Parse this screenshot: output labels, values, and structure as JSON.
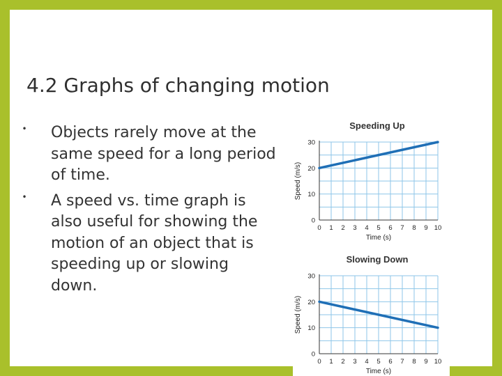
{
  "slide": {
    "title": "4.2 Graphs of changing motion",
    "bullets": [
      "Objects rarely move at the same speed for a long period of time.",
      "A speed vs. time graph is also useful for showing the motion of an object that is speeding up or slowing down."
    ],
    "bullet_glyph": "•"
  },
  "colors": {
    "frame": "#a9c02b",
    "grid": "#8ec6e8",
    "line": "#1f6fb6"
  },
  "chart_data": [
    {
      "type": "line",
      "title": "Speeding Up",
      "xlabel": "Time (s)",
      "ylabel": "Speed (m/s)",
      "xlim": [
        0,
        10
      ],
      "ylim": [
        0,
        30
      ],
      "x_ticks": [
        0,
        1,
        2,
        3,
        4,
        5,
        6,
        7,
        8,
        9,
        10
      ],
      "y_ticks": [
        0,
        10,
        20,
        30
      ],
      "grid": true,
      "series": [
        {
          "x": [
            0,
            10
          ],
          "y": [
            20,
            30
          ]
        }
      ]
    },
    {
      "type": "line",
      "title": "Slowing Down",
      "xlabel": "Time (s)",
      "ylabel": "Speed (m/s)",
      "xlim": [
        0,
        10
      ],
      "ylim": [
        0,
        30
      ],
      "x_ticks": [
        0,
        1,
        2,
        3,
        4,
        5,
        6,
        7,
        8,
        9,
        10
      ],
      "y_ticks": [
        0,
        10,
        20,
        30
      ],
      "grid": true,
      "series": [
        {
          "x": [
            0,
            10
          ],
          "y": [
            20,
            10
          ]
        }
      ]
    }
  ]
}
